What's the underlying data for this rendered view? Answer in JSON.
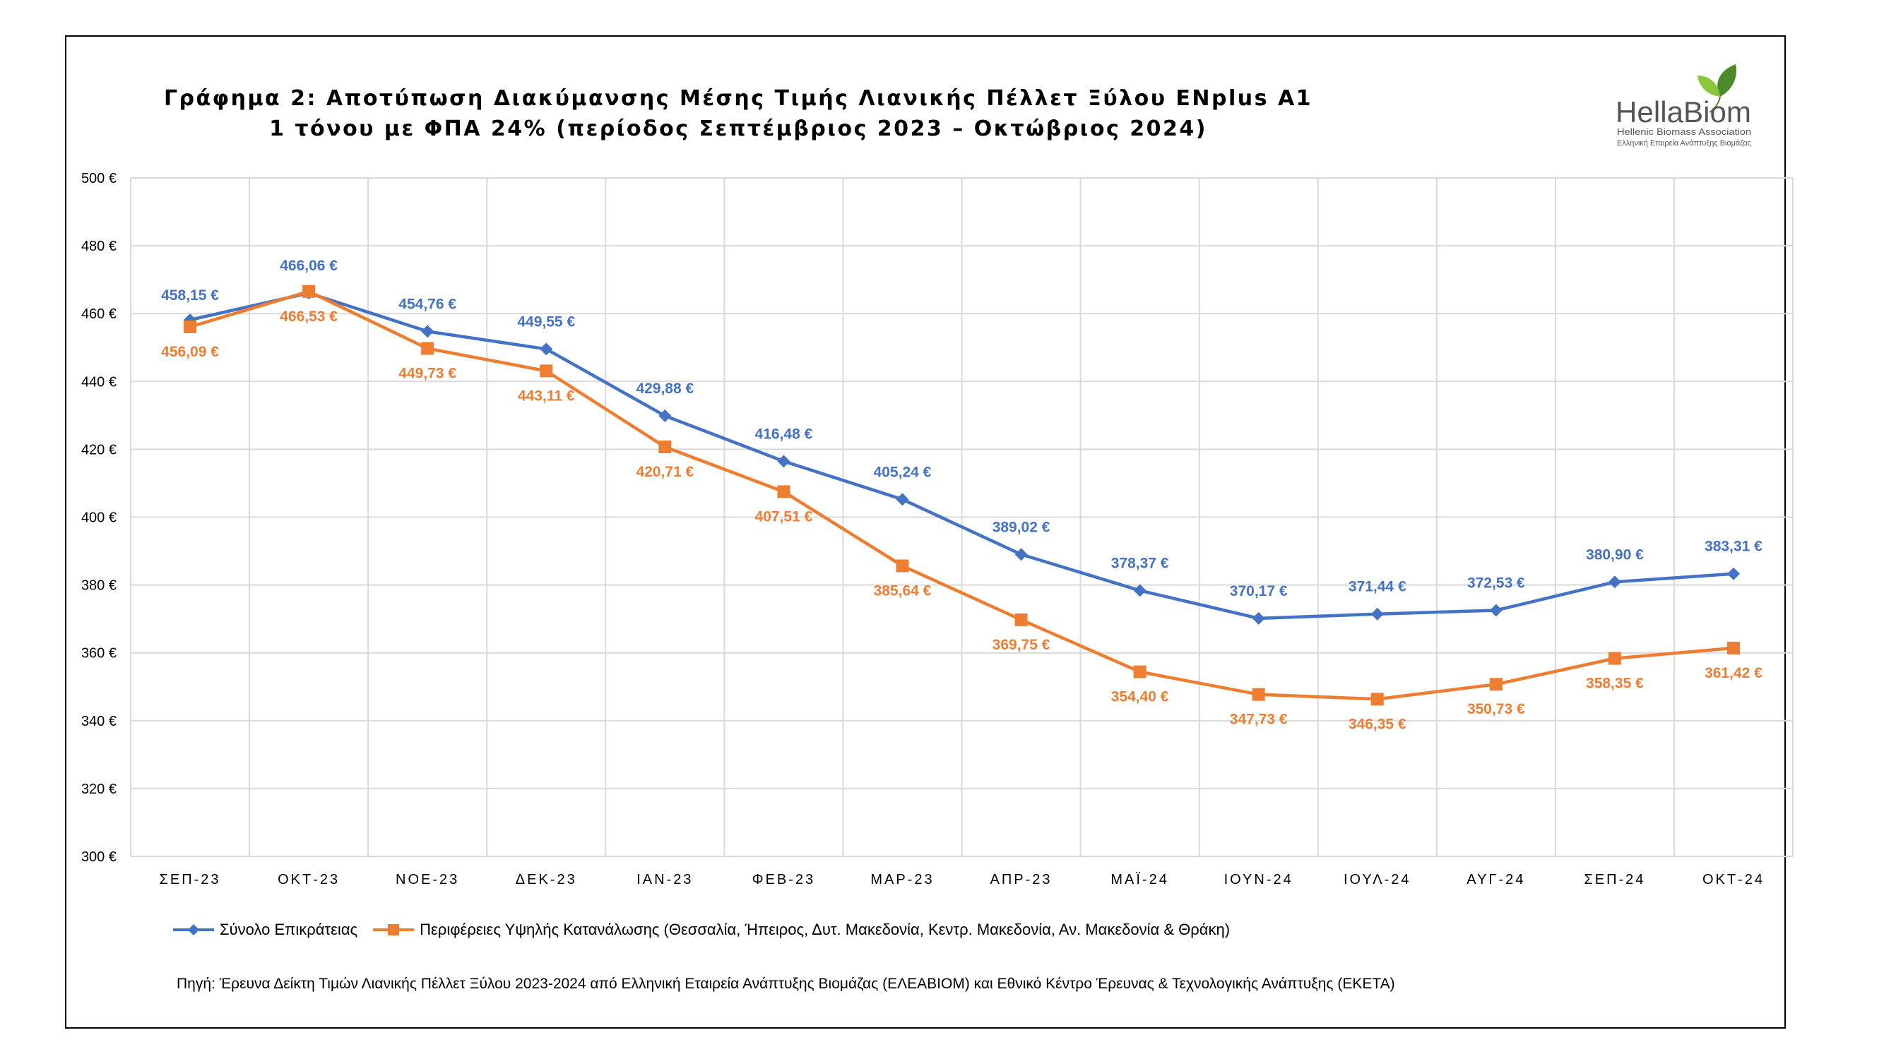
{
  "chart_data": {
    "type": "line",
    "title_lines": [
      "Γράφημα 2: Αποτύπωση Διακύμανσης Μέσης Τιμής Λιανικής Πέλλετ Ξύλου ENplus A1",
      "1 τόνου με ΦΠΑ 24% (περίοδος Σεπτέμβριος 2023 – Οκτώβριος 2024)"
    ],
    "categories": [
      "ΣΕΠ-23",
      "ΟΚΤ-23",
      "ΝΟΕ-23",
      "ΔΕΚ-23",
      "ΙΑΝ-23",
      "ΦΕΒ-23",
      "ΜΑΡ-23",
      "ΑΠΡ-23",
      "ΜΑΪ-24",
      "ΙΟΥΝ-24",
      "ΙΟΥΛ-24",
      "ΑΥΓ-24",
      "ΣΕΠ-24",
      "ΟΚΤ-24"
    ],
    "ylim": [
      300,
      500
    ],
    "y_ticks": [
      300,
      320,
      340,
      360,
      380,
      400,
      420,
      440,
      460,
      480,
      500
    ],
    "y_tick_labels": [
      "300 €",
      "320 €",
      "340 €",
      "360 €",
      "380 €",
      "400 €",
      "420 €",
      "440 €",
      "460 €",
      "480 €",
      "500 €"
    ],
    "grid": true,
    "legend_position": "bottom-left",
    "series": [
      {
        "name": "Σύνολο Επικράτειας",
        "color": "#4472C4",
        "marker": "diamond",
        "values": [
          458.15,
          466.06,
          454.76,
          449.55,
          429.88,
          416.48,
          405.24,
          389.02,
          378.37,
          370.17,
          371.44,
          372.53,
          380.9,
          383.31
        ],
        "labels": [
          "458,15 €",
          "466,06 €",
          "454,76 €",
          "449,55 €",
          "429,88 €",
          "416,48 €",
          "405,24 €",
          "389,02 €",
          "378,37 €",
          "370,17 €",
          "371,44 €",
          "372,53 €",
          "380,90 €",
          "383,31 €"
        ]
      },
      {
        "name": "Περιφέρειες Υψηλής Κατανάλωσης (Θεσσαλία, Ήπειρος, Δυτ. Μακεδονία, Κεντρ. Μακεδονία, Αν. Μακεδονία & Θράκη)",
        "color": "#ED7D31",
        "marker": "square",
        "values": [
          456.09,
          466.53,
          449.73,
          443.11,
          420.71,
          407.51,
          385.64,
          369.75,
          354.4,
          347.73,
          346.35,
          350.73,
          358.35,
          361.42
        ],
        "labels": [
          "456,09 €",
          "466,53 €",
          "449,73 €",
          "443,11 €",
          "420,71 €",
          "407,51 €",
          "385,64 €",
          "369,75 €",
          "354,40 €",
          "347,73 €",
          "346,35 €",
          "350,73 €",
          "358,35 €",
          "361,42 €"
        ]
      }
    ],
    "source": "Πηγή: Έρευνα Δείκτη Τιμών Λιανικής Πέλλετ Ξύλου 2023-2024 από Ελληνική Εταιρεία Ανάπτυξης Βιομάζας (ΕΛΕΑΒΙΟΜ) και Εθνικό Κέντρο Έρευνας & Τεχνολογικής Ανάπτυξης (ΕΚΕΤΑ)"
  },
  "logo": {
    "name": "HellaBiom",
    "subtitle_en": "Hellenic Biomass Association",
    "subtitle_el": "Ελληνική Εταιρεία Ανάπτυξης Βιομάζας",
    "colors": {
      "text": "#555555",
      "leaf_dark": "#4E8A2A",
      "leaf_light": "#8CC63F"
    }
  }
}
